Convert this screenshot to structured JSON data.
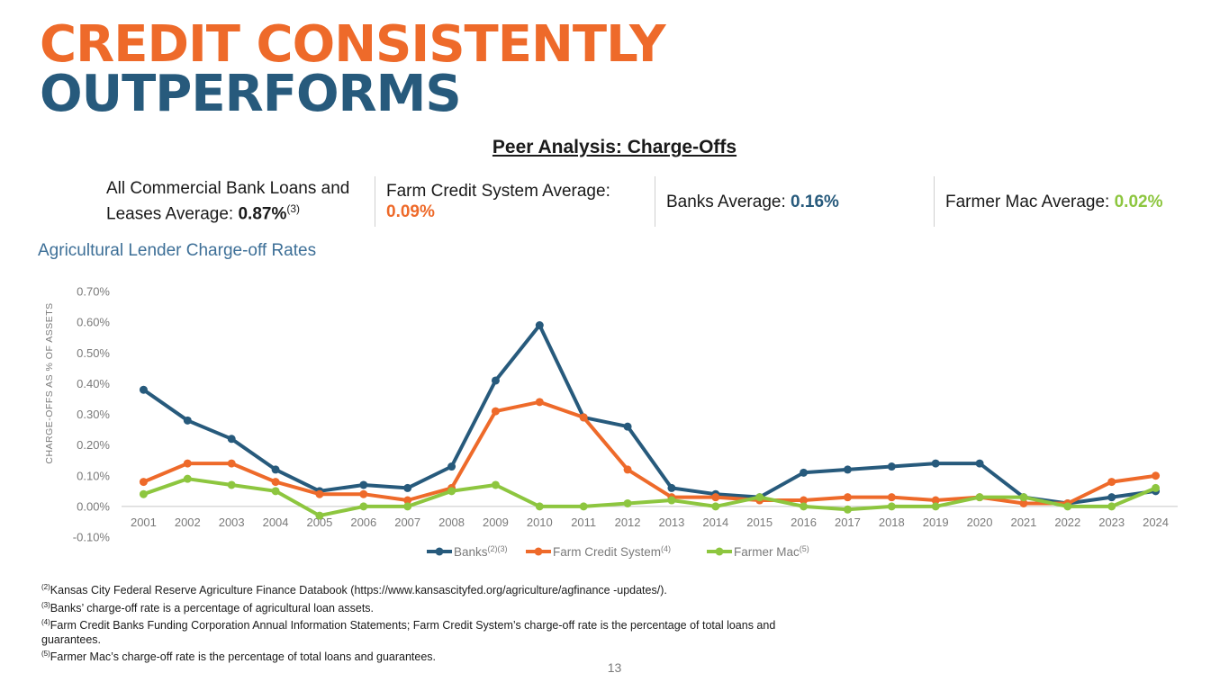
{
  "heading": {
    "line1": "CREDIT CONSISTENTLY",
    "line2": "OUTPERFORMS"
  },
  "peer_title": "Peer Analysis: Charge-Offs",
  "averages": [
    {
      "label": "All Commercial Bank Loans and Leases Average: ",
      "value": "0.87%",
      "sup": "(3)"
    },
    {
      "label": "Farm Credit System Average:",
      "value": "0.09%"
    },
    {
      "label": "Banks Average: ",
      "value": "0.16%"
    },
    {
      "label": "Farmer Mac Average: ",
      "value": "0.02%"
    }
  ],
  "chart_title": "Agricultural Lender Charge-off Rates",
  "chart_data": {
    "type": "line",
    "ylabel": "CHARGE-OFFS AS % OF ASSETS",
    "ylim": [
      -0.1,
      0.7
    ],
    "yticks": [
      -0.1,
      0.0,
      0.1,
      0.2,
      0.3,
      0.4,
      0.5,
      0.6,
      0.7
    ],
    "ytick_labels": [
      "-0.10%",
      "0.00%",
      "0.10%",
      "0.20%",
      "0.30%",
      "0.40%",
      "0.50%",
      "0.60%",
      "0.70%"
    ],
    "categories": [
      "2001",
      "2002",
      "2003",
      "2004",
      "2005",
      "2006",
      "2007",
      "2008",
      "2009",
      "2010",
      "2011",
      "2012",
      "2013",
      "2014",
      "2015",
      "2016",
      "2017",
      "2018",
      "2019",
      "2020",
      "2021",
      "2022",
      "2023",
      "2024"
    ],
    "legend_position": "bottom",
    "series": [
      {
        "name": "Banks",
        "sup": "(2)(3)",
        "color": "#275a7c",
        "values": [
          0.38,
          0.28,
          0.22,
          0.12,
          0.05,
          0.07,
          0.06,
          0.13,
          0.41,
          0.59,
          0.29,
          0.26,
          0.06,
          0.04,
          0.03,
          0.11,
          0.12,
          0.13,
          0.14,
          0.14,
          0.03,
          0.01,
          0.03,
          0.05
        ]
      },
      {
        "name": "Farm Credit System",
        "sup": "(4)",
        "color": "#ee6a2a",
        "values": [
          0.08,
          0.14,
          0.14,
          0.08,
          0.04,
          0.04,
          0.02,
          0.06,
          0.31,
          0.34,
          0.29,
          0.12,
          0.03,
          0.03,
          0.02,
          0.02,
          0.03,
          0.03,
          0.02,
          0.03,
          0.01,
          0.01,
          0.08,
          0.1
        ]
      },
      {
        "name": "Farmer Mac",
        "sup": "(5)",
        "color": "#8dc63f",
        "values": [
          0.04,
          0.09,
          0.07,
          0.05,
          -0.03,
          0.0,
          0.0,
          0.05,
          0.07,
          0.0,
          0.0,
          0.01,
          0.02,
          0.0,
          0.03,
          0.0,
          -0.01,
          0.0,
          0.0,
          0.03,
          0.03,
          0.0,
          0.0,
          0.06
        ]
      }
    ]
  },
  "footnotes": [
    {
      "sup": "(2)",
      "text": "Kansas City Federal Reserve Agriculture Finance Databook (https://www.kansascityfed.org/agriculture/agfinance -updates/)."
    },
    {
      "sup": "(3)",
      "text": "Banks’ charge-off rate is a percentage of agricultural loan assets."
    },
    {
      "sup": "(4)",
      "text": "Farm Credit Banks Funding Corporation Annual Information Statements; Farm Credit System’s charge-off rate is the percentage of total loans and guarantees."
    },
    {
      "sup": "(5)",
      "text": "Farmer Mac’s charge-off rate is the percentage of total loans and guarantees."
    }
  ],
  "page_number": "13"
}
